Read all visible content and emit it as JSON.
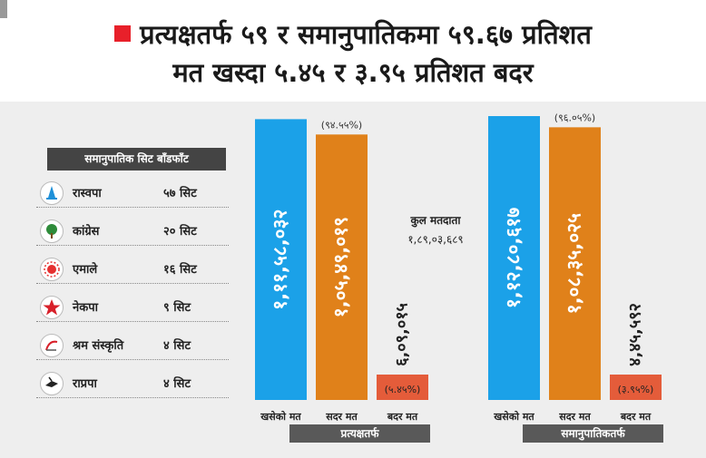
{
  "headline": {
    "line1": "प्रत्यक्षतर्फ ५९ र समानुपातिकमा ५९.६७ प्रतिशत",
    "line2": "मत खस्दा ५.४५ र ३.९५ प्रतिशत बदर"
  },
  "seat_table": {
    "title": "समानुपातिक सिट बाँडफाँट",
    "rows": [
      {
        "party": "रास्वपा",
        "seats": "५७ सिट",
        "icon": "bell-icon",
        "color": "#1e90d8"
      },
      {
        "party": "कांग्रेस",
        "seats": "२० सिट",
        "icon": "tree-icon",
        "color": "#2e8b3a"
      },
      {
        "party": "एमाले",
        "seats": "१६ सिट",
        "icon": "sun-icon",
        "color": "#e53030"
      },
      {
        "party": "नेकपा",
        "seats": "९ सिट",
        "icon": "star-icon",
        "color": "#d8202a"
      },
      {
        "party": "श्रम संस्कृति",
        "seats": "४ सिट",
        "icon": "sickle-icon",
        "color": "#d8202a"
      },
      {
        "party": "राप्रपा",
        "seats": "४ सिट",
        "icon": "plough-icon",
        "color": "#222222"
      }
    ]
  },
  "voters": {
    "label": "कुल मतदाता",
    "value": "१,८९,०३,६८९"
  },
  "colors": {
    "cast": "#1ba1e8",
    "valid": "#e0811a",
    "invalid": "#e45c3a",
    "group_bg": "#595959"
  },
  "chart_data": [
    {
      "type": "bar",
      "group": "प्रत्यक्षतर्फ",
      "categories": [
        "खसेको मत",
        "सदर मत",
        "बदर मत"
      ],
      "values": [
        11158032,
        10549019,
        609015
      ],
      "value_labels": [
        "१,११,५८,०३२",
        "१,०५,४९,०१९",
        "६,०९,०१५"
      ],
      "percent_labels": [
        "",
        "(९४.५५%)",
        "(५.४५%)"
      ]
    },
    {
      "type": "bar",
      "group": "समानुपातिकतर्फ",
      "categories": [
        "खसेको मत",
        "सदर मत",
        "बदर मत"
      ],
      "values": [
        11280617,
        10835025,
        445592
      ],
      "value_labels": [
        "१,१२,८०,६१७",
        "१,०८,३५,०२५",
        "४,४५,५९२"
      ],
      "percent_labels": [
        "",
        "(९६.०५%)",
        "(३.९५%)"
      ]
    }
  ]
}
